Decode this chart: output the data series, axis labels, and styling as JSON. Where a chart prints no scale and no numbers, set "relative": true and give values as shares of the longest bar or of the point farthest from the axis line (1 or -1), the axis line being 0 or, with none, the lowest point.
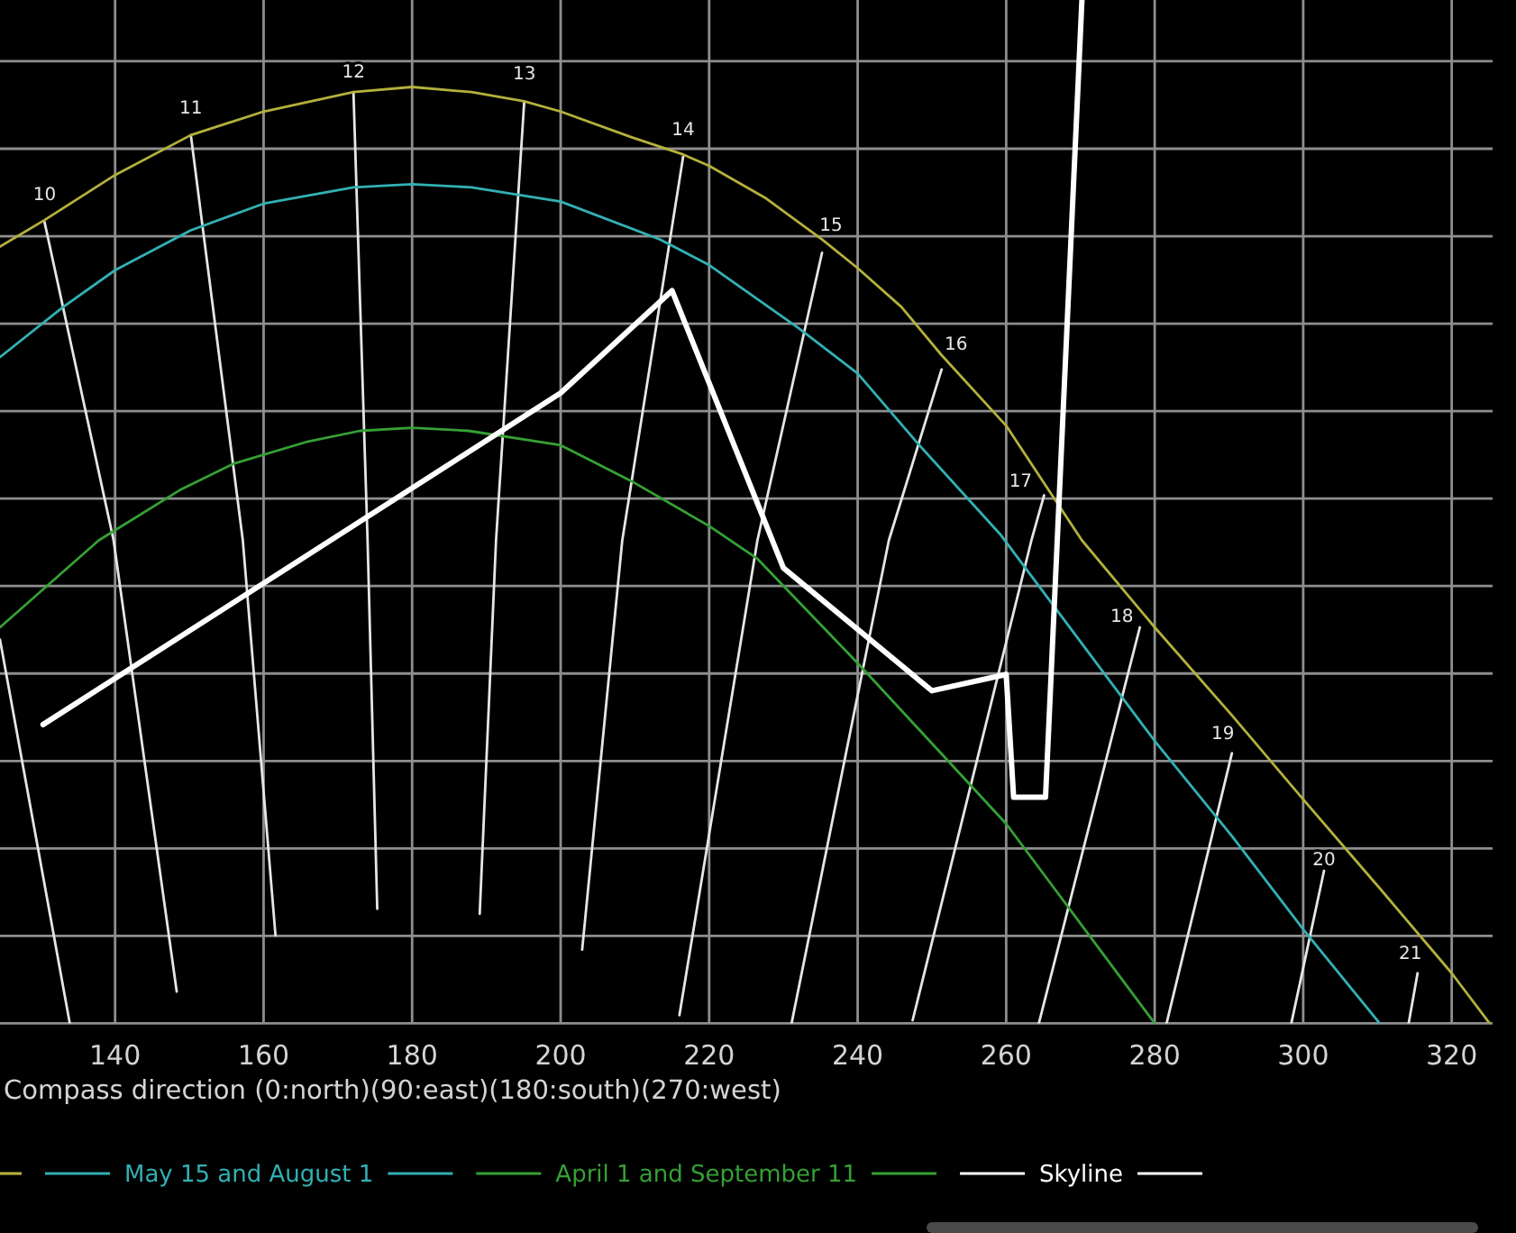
{
  "chart_data": {
    "type": "line",
    "relative": true,
    "xlabel": "Compass direction (0:north)(90:east)(180:south)(270:west)",
    "xlim": [
      124.5,
      325.5
    ],
    "xticks": [
      140,
      160,
      180,
      200,
      220,
      240,
      260,
      280,
      300,
      320
    ],
    "grid": true,
    "legend": "bottom",
    "series": [
      {
        "color": "#b4b03c",
        "x": [
          124.5,
          130.5,
          140,
          150.2,
          160,
          172.1,
          180,
          188,
          195.1,
          200,
          209.5,
          216.5,
          220,
          227.7,
          235.2,
          240,
          245.9,
          251.3,
          260,
          265.1,
          270.2,
          280,
          290.4,
          300.1,
          310.3,
          320,
          325.1
        ],
        "values": [
          0.759,
          0.785,
          0.829,
          0.868,
          0.891,
          0.91,
          0.915,
          0.91,
          0.901,
          0.891,
          0.866,
          0.849,
          0.838,
          0.806,
          0.766,
          0.738,
          0.7,
          0.653,
          0.584,
          0.528,
          0.472,
          0.387,
          0.301,
          0.218,
          0.132,
          0.049,
          0
        ]
      },
      {
        "name": "May 15 and August 1",
        "color": "#33b0b4",
        "x": [
          124.5,
          133,
          140,
          150.2,
          160,
          172.1,
          180,
          188,
          200,
          213.4,
          220,
          232.1,
          240,
          248.3,
          259.3,
          270.2,
          280,
          290.4,
          300.1,
          310.3
        ],
        "values": [
          0.651,
          0.7,
          0.736,
          0.775,
          0.801,
          0.817,
          0.82,
          0.817,
          0.803,
          0.766,
          0.741,
          0.679,
          0.635,
          0.565,
          0.477,
          0.371,
          0.276,
          0.183,
          0.091,
          0
        ]
      },
      {
        "name": "April 1 and September 11",
        "color": "#35a035",
        "x": [
          124.5,
          137.8,
          148.7,
          156,
          165.7,
          173,
          180,
          187.6,
          200,
          209.5,
          220,
          226.5,
          240,
          260,
          267.8,
          280
        ],
        "values": [
          0.387,
          0.472,
          0.521,
          0.547,
          0.568,
          0.579,
          0.582,
          0.579,
          0.565,
          0.53,
          0.486,
          0.454,
          0.352,
          0.195,
          0.119,
          0
        ]
      },
      {
        "name": "Skyline",
        "color": "#ffffff",
        "x": [
          130.3,
          200,
          215,
          230,
          250,
          260,
          261,
          265.3,
          270.2
        ],
        "values": [
          0.292,
          0.616,
          0.716,
          0.445,
          0.325,
          0.341,
          0.221,
          0.221,
          1
        ]
      },
      {
        "color": "#e6e6e6",
        "x": [
          124.5,
          133.9
        ],
        "values": [
          0.375,
          0
        ]
      },
      {
        "name": "10",
        "color": "#e6e6e6",
        "x": [
          130.5,
          139.8,
          148.3
        ],
        "values": [
          0.783,
          0.472,
          0.031
        ]
      },
      {
        "name": "11",
        "color": "#e6e6e6",
        "x": [
          150.2,
          157.2,
          161.6
        ],
        "values": [
          0.868,
          0.472,
          0.086
        ]
      },
      {
        "name": "12",
        "color": "#e6e6e6",
        "x": [
          172.1,
          174,
          175.3
        ],
        "values": [
          0.91,
          0.472,
          0.112
        ]
      },
      {
        "name": "13",
        "color": "#e6e6e6",
        "x": [
          195.1,
          191.3,
          189.1
        ],
        "values": [
          0.901,
          0.472,
          0.107
        ]
      },
      {
        "name": "14",
        "color": "#e6e6e6",
        "x": [
          216.5,
          208.3,
          202.9
        ],
        "values": [
          0.847,
          0.472,
          0.072
        ]
      },
      {
        "name": "15",
        "color": "#e6e6e6",
        "x": [
          235.2,
          226.5,
          216
        ],
        "values": [
          0.753,
          0.472,
          0.008
        ]
      },
      {
        "name": "16",
        "color": "#e6e6e6",
        "x": [
          251.3,
          244.2,
          231.1
        ],
        "values": [
          0.639,
          0.472,
          0
        ]
      },
      {
        "name": "17",
        "color": "#e6e6e6",
        "x": [
          265.1,
          263.4,
          247.4
        ],
        "values": [
          0.516,
          0.472,
          0.003
        ]
      },
      {
        "name": "18",
        "color": "#e6e6e6",
        "x": [
          278,
          264.4
        ],
        "values": [
          0.387,
          0
        ]
      },
      {
        "name": "19",
        "color": "#e6e6e6",
        "x": [
          290.4,
          281.6
        ],
        "values": [
          0.264,
          0
        ]
      },
      {
        "name": "20",
        "color": "#e6e6e6",
        "x": [
          302.8,
          298.4
        ],
        "values": [
          0.149,
          0
        ]
      },
      {
        "name": "21",
        "color": "#e6e6e6",
        "x": [
          315.4,
          314.2
        ],
        "values": [
          0.049,
          0
        ]
      }
    ]
  }
}
